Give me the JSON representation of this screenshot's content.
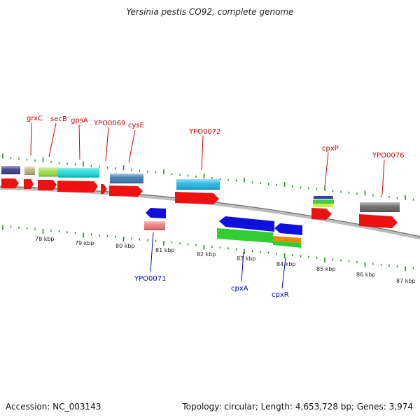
{
  "title": "Yersinia pestis CO92, complete genome",
  "footer": {
    "accession": "Accession: NC_003143",
    "summary": "Topology: circular; Length: 4,653,728 bp; Genes: 3,974"
  },
  "colors": {
    "backbone": "#8a8a8a",
    "tick": "#1f8f1f",
    "label_forward": "#cc0000",
    "label_reverse": "#0000cc"
  },
  "axis": {
    "labels": [
      "78 kbp",
      "79 kbp",
      "80 kbp",
      "81 kbp",
      "82 kbp",
      "83 kbp",
      "84 kbp",
      "85 kbp",
      "86 kbp",
      "87 kbp"
    ]
  },
  "gene_labels": [
    {
      "text": "grxC",
      "strand": "forward"
    },
    {
      "text": "secB",
      "strand": "forward"
    },
    {
      "text": "gpsA",
      "strand": "forward"
    },
    {
      "text": "YPO0069",
      "strand": "forward"
    },
    {
      "text": "cysE",
      "strand": "forward"
    },
    {
      "text": "YPO0072",
      "strand": "forward"
    },
    {
      "text": "cpxP",
      "strand": "forward"
    },
    {
      "text": "YPO0076",
      "strand": "forward"
    },
    {
      "text": "YPO0071",
      "strand": "reverse"
    },
    {
      "text": "cpxA",
      "strand": "reverse"
    },
    {
      "text": "cpxR",
      "strand": "reverse"
    }
  ]
}
